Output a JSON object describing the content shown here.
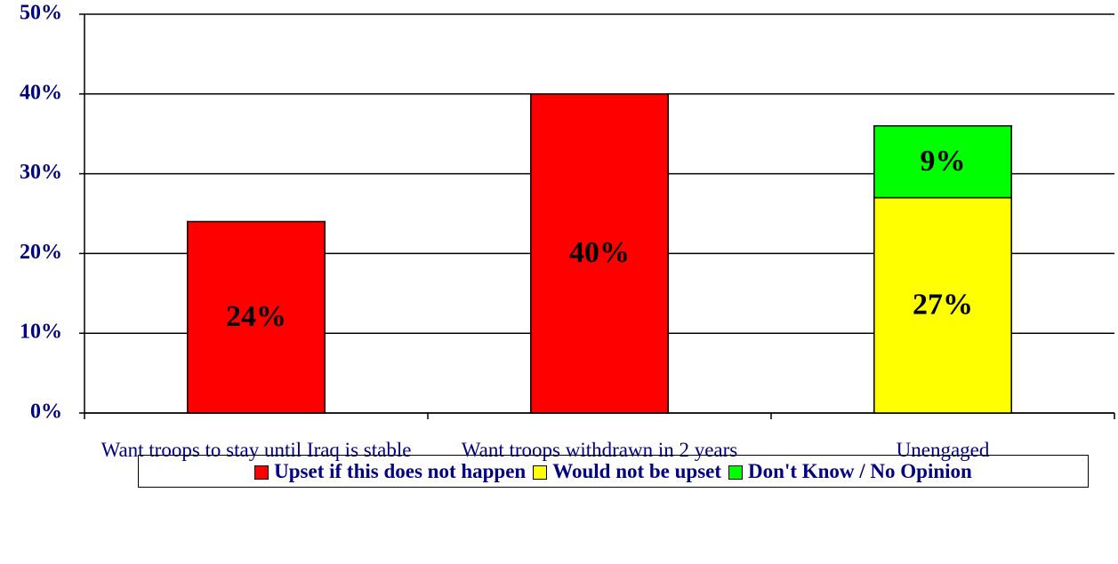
{
  "chart_data": {
    "type": "stacked_bar",
    "categories": [
      "Want troops to stay until Iraq is stable",
      "Want troops withdrawn in 2 years",
      "Unengaged"
    ],
    "series": [
      {
        "name": "Upset if this does not happen",
        "color": "#ff0000",
        "values": [
          24,
          40,
          null
        ],
        "value_labels": [
          "24%",
          "40%",
          null
        ]
      },
      {
        "name": "Would not be upset",
        "color": "#ffff00",
        "values": [
          null,
          null,
          27
        ],
        "value_labels": [
          null,
          null,
          "27%"
        ]
      },
      {
        "name": "Don't Know / No Opinion",
        "color": "#00ff00",
        "values": [
          null,
          null,
          9
        ],
        "value_labels": [
          null,
          null,
          "9%"
        ]
      }
    ],
    "ylim": [
      0,
      50
    ],
    "yticks": [
      {
        "value": 0,
        "label": "0%"
      },
      {
        "value": 10,
        "label": "10%"
      },
      {
        "value": 20,
        "label": "20%"
      },
      {
        "value": 30,
        "label": "30%"
      },
      {
        "value": 40,
        "label": "40%"
      },
      {
        "value": 50,
        "label": "50%"
      }
    ],
    "grid": true,
    "legend": "bottom"
  }
}
